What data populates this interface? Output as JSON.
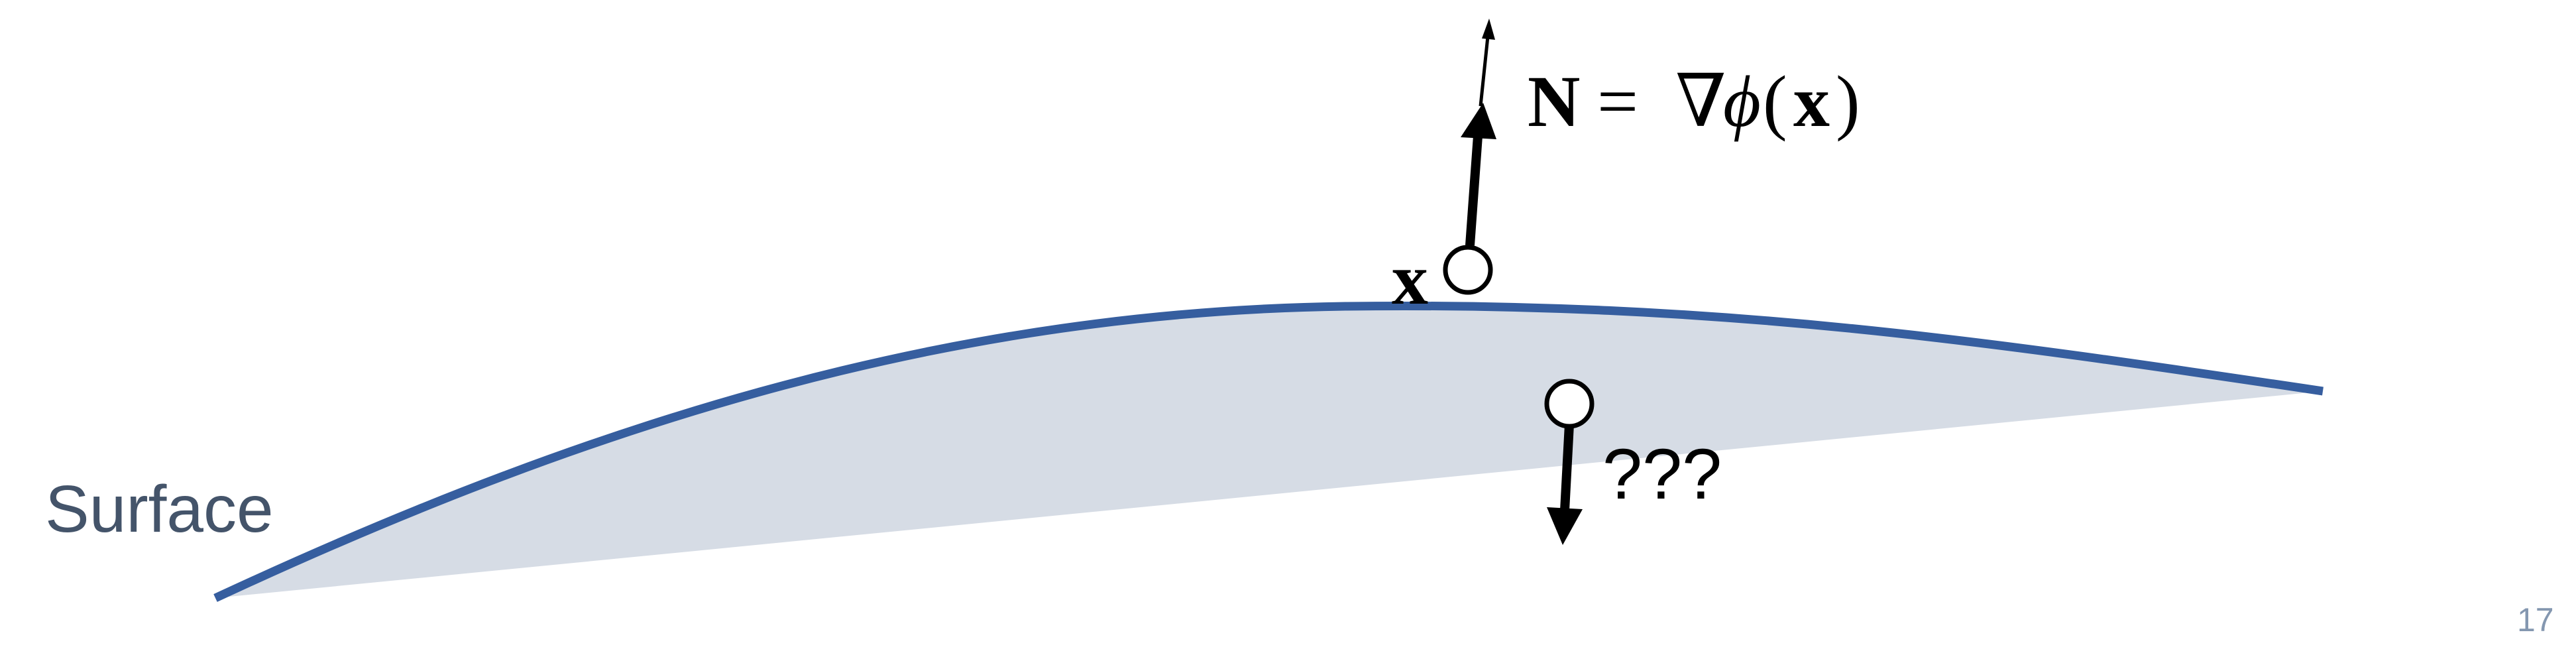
{
  "surface_label": "Surface",
  "point_label": "x",
  "normal_equation": {
    "lhs": "N",
    "equals": "=",
    "nabla": "∇",
    "phi": "ϕ",
    "open_paren": "(",
    "arg": "x",
    "close_paren": ")"
  },
  "unknown_label": "???",
  "page_number": "17",
  "colors": {
    "surface_curve": "#365E9F",
    "surface_fill": "#D6DCE5",
    "surface_label": "#44546A",
    "ink": "#000000",
    "page_number": "#8497B0"
  }
}
